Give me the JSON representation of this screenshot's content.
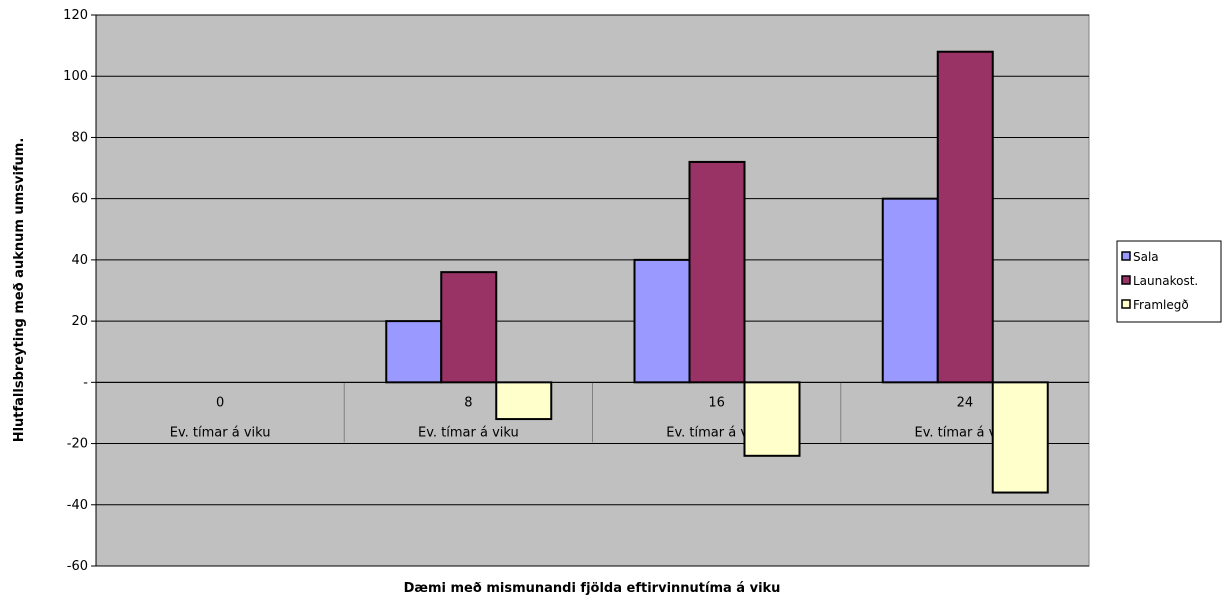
{
  "chart_data": {
    "type": "bar",
    "categories": [
      "0",
      "8",
      "16",
      "24"
    ],
    "category_sublabel": "Ev. tímar á viku",
    "series": [
      {
        "name": "Sala",
        "values": [
          0,
          20,
          40,
          60
        ],
        "color": "#9999ff"
      },
      {
        "name": "Launakost.",
        "values": [
          0,
          36,
          72,
          108
        ],
        "color": "#993366"
      },
      {
        "name": "Framlegð",
        "values": [
          0,
          -12,
          -24,
          -36
        ],
        "color": "#ffffcc"
      }
    ],
    "title": "",
    "xlabel": "Dæmi með mismunandi fjölda eftirvinnutíma á viku",
    "ylabel": "Hlutfallsbreyting með auknum umsvifum.",
    "ylim": [
      -60,
      120
    ],
    "yticks": [
      "-60",
      "-40",
      "-20",
      "-",
      "20",
      "40",
      "60",
      "80",
      "100",
      "120"
    ],
    "ytick_values": [
      -60,
      -40,
      -20,
      0,
      20,
      40,
      60,
      80,
      100,
      120
    ],
    "grid": true,
    "legend_position": "right",
    "plot_background": "#c0c0c0"
  }
}
